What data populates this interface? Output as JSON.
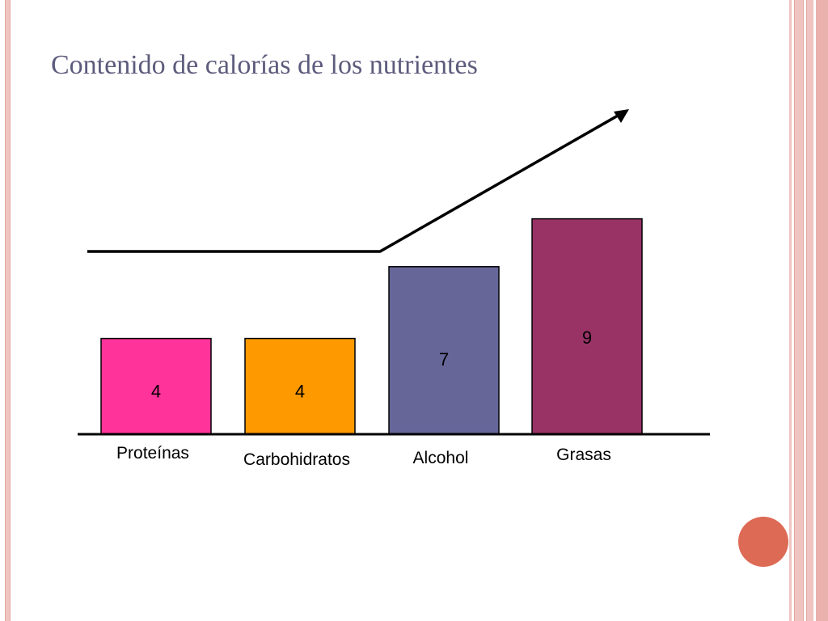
{
  "slide": {
    "title": "Contenido de calorías de los nutrientes"
  },
  "chart_data": {
    "type": "bar",
    "title": "Contenido de calorías de los nutrientes",
    "categories": [
      "Proteínas",
      "Carbohidratos",
      "Alcohol",
      "Grasas"
    ],
    "values": [
      4,
      4,
      7,
      9
    ],
    "colors": [
      "#ff3399",
      "#ff9900",
      "#666699",
      "#993366"
    ],
    "annotations": [
      "trend arrow rising from Carbohidratos to Grasas"
    ],
    "grid": false,
    "legend": "none"
  },
  "theme": {
    "title_color": "#5d5b7c",
    "accent_circle": "#dd6a55",
    "frame_stripe": "#f0c4c0"
  }
}
